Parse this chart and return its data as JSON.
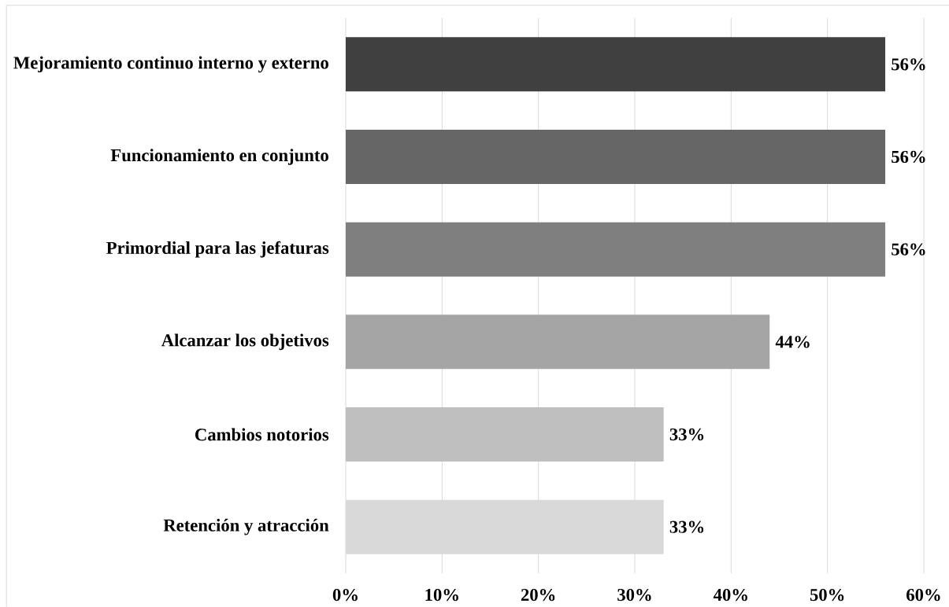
{
  "chart_data": {
    "type": "bar",
    "orientation": "horizontal",
    "categories": [
      "Mejoramiento continuo interno y externo",
      "Funcionamiento en conjunto",
      "Primordial para las jefaturas",
      "Alcanzar los objetivos",
      "Cambios notorios",
      "Retención y atracción"
    ],
    "values": [
      56,
      56,
      56,
      44,
      33,
      33
    ],
    "colors": [
      "#404040",
      "#666666",
      "#7f7f7f",
      "#a5a5a5",
      "#bfbfbf",
      "#d9d9d9"
    ],
    "value_labels": [
      "56%",
      "56%",
      "56%",
      "44%",
      "33%",
      "33%"
    ],
    "xlim": [
      0,
      60
    ],
    "xticks": [
      {
        "value": 0,
        "label": "0%"
      },
      {
        "value": 10,
        "label": "10%"
      },
      {
        "value": 20,
        "label": "20%"
      },
      {
        "value": 30,
        "label": "30%"
      },
      {
        "value": 40,
        "label": "40%"
      },
      {
        "value": 50,
        "label": "50%"
      },
      {
        "value": 60,
        "label": "60%"
      }
    ],
    "grid": "x"
  }
}
